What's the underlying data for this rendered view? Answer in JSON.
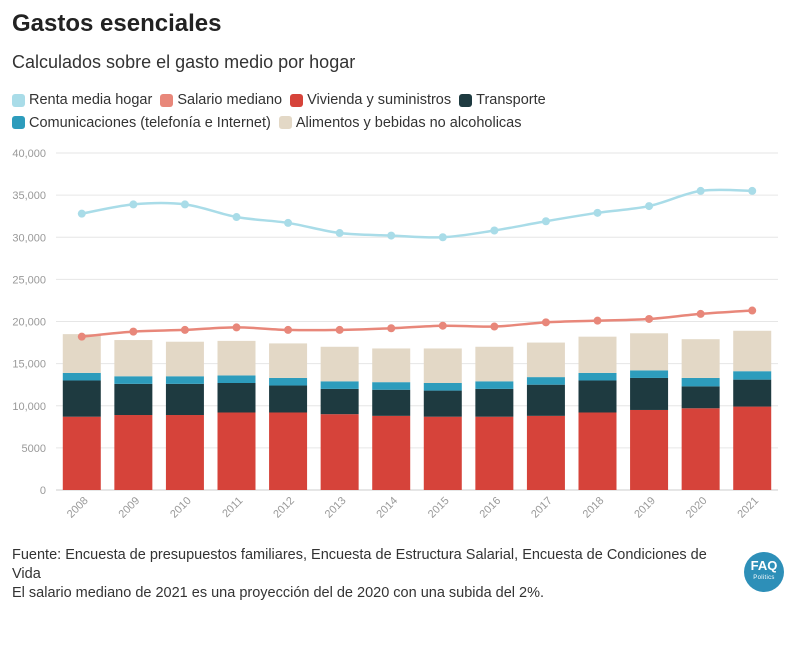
{
  "header": {
    "title": "Gastos esenciales",
    "subtitle": "Calculados sobre el gasto medio por hogar"
  },
  "legend": [
    {
      "label": "Renta media hogar",
      "color": "#a9dce8"
    },
    {
      "label": "Salario mediano",
      "color": "#e8877a"
    },
    {
      "label": "Vivienda y suministros",
      "color": "#d6433a"
    },
    {
      "label": "Transporte",
      "color": "#1e3a40"
    },
    {
      "label": "Comunicaciones (telefonía e Internet)",
      "color": "#2d9cbc"
    },
    {
      "label": "Alimentos y bebidas no alcoholicas",
      "color": "#e3d8c6"
    }
  ],
  "footer": {
    "source": "Fuente: Encuesta de presupuestos familiares, Encuesta de Estructura Salarial, Encuesta de Condiciones de Vida",
    "note": "El salario mediano de 2021 es una proyección del de 2020 con una subida del 2%."
  },
  "logo": {
    "text": "FAQ",
    "subtext": "Politics"
  },
  "chart_data": {
    "type": "bar",
    "stacked": true,
    "categories": [
      "2008",
      "2009",
      "2010",
      "2011",
      "2012",
      "2013",
      "2014",
      "2015",
      "2016",
      "2017",
      "2018",
      "2019",
      "2020",
      "2021"
    ],
    "ylim": [
      0,
      40000
    ],
    "yticks": [
      0,
      5000,
      10000,
      15000,
      20000,
      25000,
      30000,
      35000,
      40000
    ],
    "ytick_labels": [
      "0",
      "5000",
      "10,000",
      "15,000",
      "20,000",
      "25,000",
      "30,000",
      "35,000",
      "40,000"
    ],
    "grid": true,
    "legend_position": "top-left",
    "series": [
      {
        "name": "Vivienda y suministros",
        "kind": "bar",
        "color": "#d6433a",
        "values": [
          8700,
          8900,
          8900,
          9200,
          9200,
          9000,
          8800,
          8700,
          8700,
          8800,
          9200,
          9500,
          9700,
          9900
        ]
      },
      {
        "name": "Transporte",
        "kind": "bar",
        "color": "#1e3a40",
        "values": [
          4300,
          3700,
          3700,
          3500,
          3200,
          3000,
          3100,
          3100,
          3300,
          3700,
          3800,
          3800,
          2600,
          3200
        ]
      },
      {
        "name": "Comunicaciones (telefonía e Internet)",
        "kind": "bar",
        "color": "#2d9cbc",
        "values": [
          900,
          900,
          900,
          900,
          900,
          900,
          900,
          900,
          900,
          900,
          900,
          900,
          1000,
          1000
        ]
      },
      {
        "name": "Alimentos y bebidas no alcoholicas",
        "kind": "bar",
        "color": "#e3d8c6",
        "values": [
          4600,
          4300,
          4100,
          4100,
          4100,
          4100,
          4000,
          4100,
          4100,
          4100,
          4300,
          4400,
          4600,
          4800
        ]
      },
      {
        "name": "Renta media hogar",
        "kind": "line",
        "color": "#a9dce8",
        "values": [
          32800,
          33900,
          33900,
          32400,
          31700,
          30500,
          30200,
          30000,
          30800,
          31900,
          32900,
          33700,
          35500,
          35500
        ]
      },
      {
        "name": "Salario mediano",
        "kind": "line",
        "color": "#e8877a",
        "values": [
          18200,
          18800,
          19000,
          19300,
          19000,
          19000,
          19200,
          19500,
          19400,
          19900,
          20100,
          20300,
          20900,
          21300
        ]
      }
    ]
  }
}
